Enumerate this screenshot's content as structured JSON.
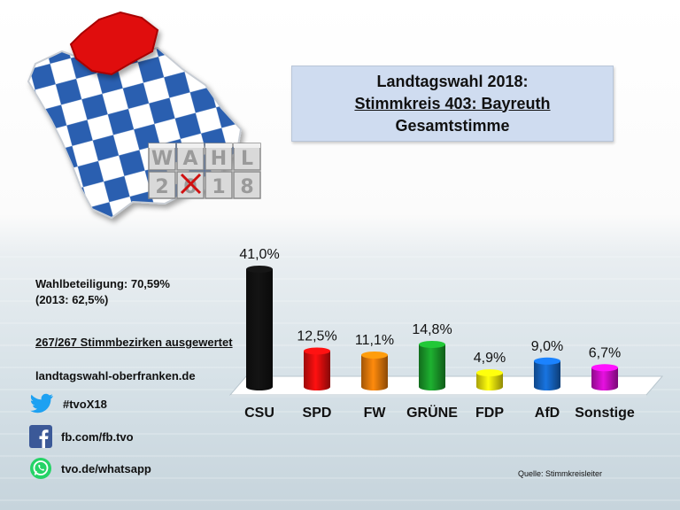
{
  "title": {
    "line1": "Landtagswahl 2018:",
    "line2": "Stimmkreis 403: Bayreuth",
    "line3": "Gesamtstimme"
  },
  "logo": {
    "letters_top": [
      "W",
      "A",
      "H",
      "L"
    ],
    "letters_bottom": [
      "2",
      "0",
      "1",
      "8"
    ]
  },
  "info": {
    "turnout": "Wahlbeteiligung: 70,59%",
    "turnout_prev": "(2013: 62,5%)",
    "counted": "267/267 Stimmbezirken ausgewertet",
    "website": "landtagswahl-oberfranken.de"
  },
  "social": {
    "twitter": "#tvoX18",
    "facebook": "fb.com/fb.tvo",
    "whatsapp": "tvo.de/whatsapp"
  },
  "source": "Quelle: Stimmkreisleiter",
  "colors": {
    "CSU": "#111111",
    "SPD": "#e00e0e",
    "FW": "#e8790a",
    "GRÜNE": "#1a9a2a",
    "FDP": "#f2e60a",
    "AfD": "#1565c4",
    "Sonstige": "#c90ec4"
  },
  "chart_data": {
    "type": "bar",
    "categories": [
      "CSU",
      "SPD",
      "FW",
      "GRÜNE",
      "FDP",
      "AfD",
      "Sonstige"
    ],
    "values": [
      41.0,
      12.5,
      11.1,
      14.8,
      4.9,
      9.0,
      6.7
    ],
    "value_labels": [
      "41,0%",
      "12,5%",
      "11,1%",
      "14,8%",
      "4,9%",
      "9,0%",
      "6,7%"
    ],
    "ylim": [
      0,
      41
    ],
    "grid": false,
    "legend": "none"
  }
}
